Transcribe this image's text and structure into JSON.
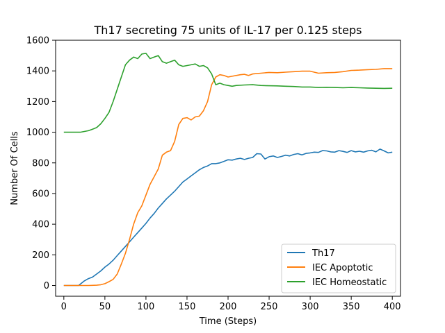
{
  "chart_data": {
    "type": "line",
    "title": "Th17 secreting 75 units of IL-17 per 0.125 steps",
    "xlabel": "Time (Steps)",
    "ylabel": "Number Of Cells",
    "xlim": [
      -10,
      410
    ],
    "ylim": [
      -70,
      1600
    ],
    "xticks": [
      0,
      50,
      100,
      150,
      200,
      250,
      300,
      350,
      400
    ],
    "yticks": [
      0,
      200,
      400,
      600,
      800,
      1000,
      1200,
      1400,
      1600
    ],
    "grid": false,
    "legend_position": "lower right",
    "series": [
      {
        "name": "Th17",
        "color": "#1f77b4",
        "x": [
          0,
          10,
          18,
          25,
          30,
          35,
          40,
          45,
          50,
          55,
          60,
          65,
          70,
          75,
          80,
          85,
          90,
          95,
          100,
          105,
          110,
          115,
          120,
          125,
          130,
          135,
          140,
          145,
          150,
          155,
          160,
          165,
          170,
          175,
          180,
          185,
          190,
          195,
          200,
          205,
          210,
          215,
          220,
          225,
          230,
          235,
          240,
          245,
          250,
          255,
          260,
          265,
          270,
          275,
          280,
          285,
          290,
          295,
          300,
          305,
          310,
          315,
          320,
          325,
          330,
          335,
          340,
          345,
          350,
          355,
          360,
          365,
          370,
          375,
          380,
          385,
          390,
          395,
          400
        ],
        "y": [
          0,
          0,
          0,
          30,
          45,
          55,
          75,
          95,
          120,
          140,
          165,
          195,
          225,
          255,
          285,
          315,
          345,
          375,
          405,
          440,
          470,
          505,
          535,
          565,
          590,
          615,
          645,
          675,
          695,
          715,
          735,
          755,
          770,
          780,
          795,
          795,
          800,
          810,
          820,
          818,
          825,
          830,
          822,
          830,
          835,
          860,
          858,
          825,
          840,
          845,
          835,
          842,
          850,
          845,
          855,
          860,
          852,
          862,
          865,
          870,
          868,
          880,
          878,
          872,
          870,
          880,
          875,
          868,
          880,
          872,
          876,
          870,
          878,
          882,
          872,
          890,
          878,
          865,
          870
        ]
      },
      {
        "name": "IEC Apoptotic",
        "color": "#ff7f0e",
        "x": [
          0,
          10,
          20,
          30,
          40,
          45,
          50,
          55,
          60,
          65,
          70,
          75,
          80,
          85,
          90,
          95,
          100,
          105,
          110,
          115,
          120,
          125,
          130,
          135,
          140,
          145,
          150,
          155,
          160,
          165,
          170,
          175,
          180,
          185,
          190,
          195,
          200,
          205,
          210,
          215,
          220,
          225,
          230,
          240,
          250,
          260,
          270,
          280,
          290,
          300,
          310,
          320,
          330,
          340,
          350,
          360,
          370,
          380,
          390,
          400
        ],
        "y": [
          0,
          0,
          0,
          0,
          2,
          5,
          12,
          25,
          40,
          75,
          140,
          210,
          300,
          400,
          475,
          520,
          590,
          660,
          710,
          760,
          850,
          870,
          880,
          940,
          1050,
          1090,
          1095,
          1080,
          1100,
          1105,
          1140,
          1200,
          1310,
          1360,
          1375,
          1370,
          1360,
          1365,
          1370,
          1375,
          1378,
          1370,
          1380,
          1385,
          1390,
          1388,
          1392,
          1395,
          1398,
          1398,
          1385,
          1388,
          1390,
          1395,
          1403,
          1405,
          1408,
          1410,
          1415,
          1415
        ]
      },
      {
        "name": "IEC Homeostatic",
        "color": "#2ca02c",
        "x": [
          0,
          10,
          20,
          25,
          30,
          35,
          40,
          45,
          50,
          55,
          60,
          65,
          70,
          75,
          80,
          85,
          90,
          95,
          100,
          105,
          110,
          115,
          120,
          125,
          130,
          135,
          140,
          145,
          150,
          155,
          160,
          165,
          170,
          175,
          180,
          185,
          190,
          195,
          200,
          205,
          210,
          220,
          230,
          240,
          250,
          260,
          270,
          280,
          290,
          300,
          310,
          320,
          330,
          340,
          350,
          360,
          370,
          380,
          390,
          400
        ],
        "y": [
          1000,
          1000,
          1000,
          1005,
          1010,
          1020,
          1030,
          1055,
          1090,
          1130,
          1200,
          1280,
          1360,
          1440,
          1470,
          1490,
          1480,
          1510,
          1515,
          1480,
          1490,
          1500,
          1460,
          1450,
          1460,
          1470,
          1440,
          1430,
          1435,
          1440,
          1445,
          1430,
          1435,
          1420,
          1380,
          1310,
          1320,
          1310,
          1305,
          1300,
          1305,
          1308,
          1310,
          1305,
          1303,
          1302,
          1300,
          1298,
          1295,
          1295,
          1292,
          1293,
          1292,
          1290,
          1292,
          1290,
          1288,
          1287,
          1286,
          1287
        ]
      }
    ]
  }
}
